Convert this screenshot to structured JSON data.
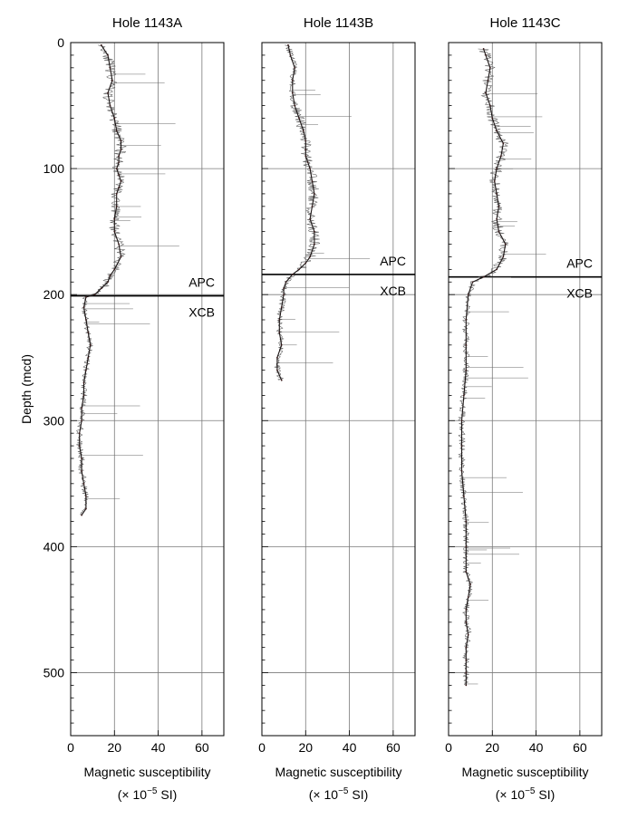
{
  "chart_data": [
    {
      "type": "line",
      "title": "Hole 1143A",
      "xlabel": "Magnetic susceptibility",
      "xunit_prefix": "(× 10",
      "xunit_exp": "−5",
      "xunit_suffix": " SI)",
      "ylabel": "Depth (mcd)",
      "xlim": [
        0,
        70
      ],
      "ylim": [
        550,
        0
      ],
      "xticks": [
        0,
        20,
        40,
        60
      ],
      "yticks": [
        0,
        100,
        200,
        300,
        400,
        500
      ],
      "grid": true,
      "boundary": {
        "depth": 201,
        "upper_label": "APC",
        "lower_label": "XCB"
      },
      "series": [
        {
          "depth": [
            2,
            10,
            20,
            30,
            40,
            50,
            60,
            70,
            78,
            85,
            90,
            95,
            100,
            105,
            110,
            115,
            120,
            130,
            140,
            150,
            160,
            170,
            180,
            185,
            190,
            195,
            200,
            202,
            210,
            220,
            230,
            240,
            250,
            260,
            270,
            280,
            290,
            300,
            310,
            320,
            330,
            340,
            350,
            360,
            370,
            375
          ],
          "value": [
            14,
            17,
            18,
            19,
            17,
            18,
            20,
            21,
            23,
            23,
            22,
            22,
            21,
            22,
            23,
            22,
            21,
            21,
            20,
            20,
            22,
            23,
            20,
            18,
            17,
            14,
            11,
            7,
            6,
            7,
            8,
            9,
            8,
            7,
            6,
            6,
            5,
            5,
            4,
            4,
            5,
            5,
            6,
            7,
            7,
            5
          ]
        }
      ]
    },
    {
      "type": "line",
      "title": "Hole 1143B",
      "xlabel": "Magnetic susceptibility",
      "xunit_prefix": "(× 10",
      "xunit_exp": "−5",
      "xunit_suffix": " SI)",
      "xlim": [
        0,
        70
      ],
      "ylim": [
        550,
        0
      ],
      "xticks": [
        0,
        20,
        40,
        60
      ],
      "yticks": [
        0,
        100,
        200,
        300,
        400,
        500
      ],
      "grid": true,
      "boundary": {
        "depth": 184,
        "upper_label": "APC",
        "lower_label": "XCB"
      },
      "series": [
        {
          "depth": [
            2,
            10,
            20,
            30,
            40,
            50,
            60,
            70,
            78,
            85,
            90,
            95,
            100,
            110,
            120,
            130,
            140,
            150,
            160,
            170,
            175,
            180,
            184,
            190,
            195,
            200,
            210,
            220,
            230,
            240,
            250,
            260,
            268
          ],
          "value": [
            12,
            13,
            15,
            14,
            14,
            15,
            17,
            19,
            20,
            20,
            20,
            21,
            22,
            23,
            24,
            23,
            22,
            24,
            24,
            22,
            20,
            17,
            14,
            11,
            10,
            10,
            9,
            8,
            8,
            9,
            7,
            7,
            9
          ]
        }
      ]
    },
    {
      "type": "line",
      "title": "Hole 1143C",
      "xlabel": "Magnetic susceptibility",
      "xunit_prefix": "(× 10",
      "xunit_exp": "−5",
      "xunit_suffix": " SI)",
      "xlim": [
        0,
        70
      ],
      "ylim": [
        550,
        0
      ],
      "xticks": [
        0,
        20,
        40,
        60
      ],
      "yticks": [
        0,
        100,
        200,
        300,
        400,
        500
      ],
      "grid": true,
      "boundary": {
        "depth": 186,
        "upper_label": "APC",
        "lower_label": "XCB"
      },
      "series": [
        {
          "depth": [
            5,
            10,
            20,
            30,
            40,
            50,
            60,
            70,
            80,
            90,
            100,
            110,
            120,
            130,
            140,
            150,
            160,
            170,
            180,
            186,
            190,
            200,
            220,
            240,
            260,
            280,
            300,
            320,
            340,
            360,
            380,
            400,
            420,
            430,
            440,
            450,
            460,
            470,
            480,
            490,
            500,
            510
          ],
          "value": [
            16,
            17,
            19,
            18,
            17,
            19,
            20,
            22,
            25,
            24,
            22,
            21,
            22,
            23,
            22,
            23,
            26,
            25,
            22,
            16,
            11,
            9,
            8,
            8,
            8,
            7,
            6,
            6,
            6,
            7,
            8,
            8,
            8,
            10,
            9,
            8,
            8,
            9,
            8,
            8,
            8,
            8
          ]
        }
      ]
    }
  ]
}
